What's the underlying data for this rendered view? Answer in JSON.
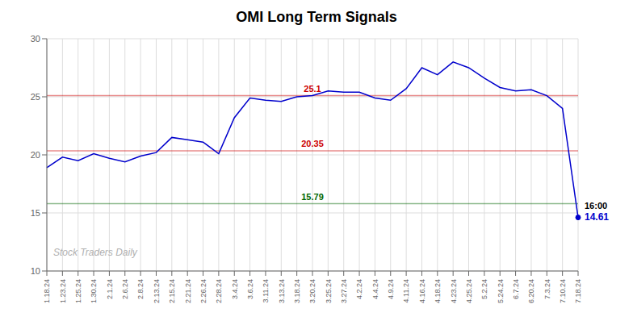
{
  "chart_data": {
    "type": "line",
    "title": "OMI Long Term Signals",
    "categories": [
      "1.18.24",
      "1.23.24",
      "1.25.24",
      "1.30.24",
      "2.1.24",
      "2.6.24",
      "2.8.24",
      "2.13.24",
      "2.15.24",
      "2.21.24",
      "2.26.24",
      "2.28.24",
      "3.4.24",
      "3.6.24",
      "3.11.24",
      "3.13.24",
      "3.18.24",
      "3.20.24",
      "3.25.24",
      "3.27.24",
      "4.2.24",
      "4.4.24",
      "4.9.24",
      "4.11.24",
      "4.16.24",
      "4.18.24",
      "4.23.24",
      "4.25.24",
      "5.2.24",
      "5.24.24",
      "6.7.24",
      "6.20.24",
      "7.3.24",
      "7.10.24",
      "7.18.24"
    ],
    "values": [
      18.9,
      19.8,
      19.5,
      20.1,
      19.7,
      19.4,
      19.9,
      20.2,
      21.5,
      21.3,
      21.1,
      20.1,
      23.2,
      24.9,
      24.7,
      24.6,
      25.0,
      25.1,
      25.5,
      25.4,
      25.4,
      24.9,
      24.7,
      25.7,
      27.5,
      26.9,
      28.0,
      27.5,
      26.6,
      25.8,
      25.5,
      25.6,
      25.1,
      24.0,
      14.61
    ],
    "color": "#0000cc",
    "ylim": [
      10,
      30
    ],
    "yticks": [
      10,
      15,
      20,
      25,
      30
    ],
    "grid": true,
    "reference_lines": [
      {
        "value": 25.1,
        "label": "25.1",
        "color": "#cc0000"
      },
      {
        "value": 20.35,
        "label": "20.35",
        "color": "#cc0000"
      },
      {
        "value": 15.79,
        "label": "15.79",
        "color": "#006600"
      }
    ],
    "annotations": [
      {
        "text": "16:00",
        "x": "7.18.24"
      },
      {
        "text": "14.61",
        "x": "7.18.24",
        "y": 14.61
      }
    ],
    "watermark": "Stock Traders Daily"
  }
}
